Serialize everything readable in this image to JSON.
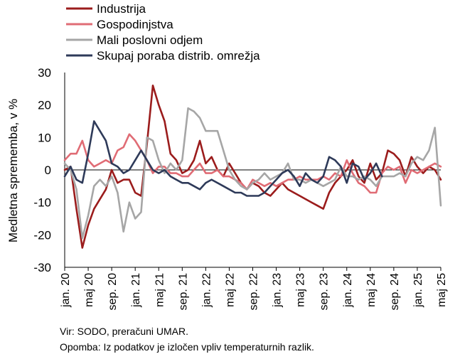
{
  "chart_data": {
    "type": "line",
    "ylabel": "Medletna sprememba, v %",
    "xlabel": "",
    "ylim": [
      -30,
      30
    ],
    "yticks": [
      30,
      20,
      10,
      0,
      -10,
      -20,
      -30
    ],
    "xticks": [
      {
        "i": 0,
        "label": "jan. 20"
      },
      {
        "i": 4,
        "label": "maj 20"
      },
      {
        "i": 8,
        "label": "sep. 20"
      },
      {
        "i": 12,
        "label": "jan. 21"
      },
      {
        "i": 16,
        "label": "maj 21"
      },
      {
        "i": 20,
        "label": "sep. 21"
      },
      {
        "i": 24,
        "label": "jan. 22"
      },
      {
        "i": 28,
        "label": "maj 22"
      },
      {
        "i": 32,
        "label": "sep. 22"
      },
      {
        "i": 36,
        "label": "jan. 23"
      },
      {
        "i": 40,
        "label": "maj 23"
      },
      {
        "i": 44,
        "label": "sep. 23"
      },
      {
        "i": 48,
        "label": "jan. 24"
      },
      {
        "i": 52,
        "label": "maj 24"
      },
      {
        "i": 56,
        "label": "sep. 24"
      },
      {
        "i": 60,
        "label": "jan. 25"
      },
      {
        "i": 64,
        "label": "maj 25"
      }
    ],
    "x": [
      "2020-01",
      "2020-02",
      "2020-03",
      "2020-04",
      "2020-05",
      "2020-06",
      "2020-07",
      "2020-08",
      "2020-09",
      "2020-10",
      "2020-11",
      "2020-12",
      "2021-01",
      "2021-02",
      "2021-03",
      "2021-04",
      "2021-05",
      "2021-06",
      "2021-07",
      "2021-08",
      "2021-09",
      "2021-10",
      "2021-11",
      "2021-12",
      "2022-01",
      "2022-02",
      "2022-03",
      "2022-04",
      "2022-05",
      "2022-06",
      "2022-07",
      "2022-08",
      "2022-09",
      "2022-10",
      "2022-11",
      "2022-12",
      "2023-01",
      "2023-02",
      "2023-03",
      "2023-04",
      "2023-05",
      "2023-06",
      "2023-07",
      "2023-08",
      "2023-09",
      "2023-10",
      "2023-11",
      "2023-12",
      "2024-01",
      "2024-02",
      "2024-03",
      "2024-04",
      "2024-05",
      "2024-06",
      "2024-07",
      "2024-08",
      "2024-09",
      "2024-10",
      "2024-11",
      "2024-12",
      "2025-01",
      "2025-02",
      "2025-03",
      "2025-04",
      "2025-05"
    ],
    "grid": false,
    "legend_position": "top-left",
    "series": [
      {
        "name": "Industrija",
        "color": "#9b1c1c",
        "values": [
          0,
          1,
          -12,
          -24,
          -17,
          -12,
          -9,
          -6,
          0,
          -4,
          -3,
          -3,
          -7,
          -8,
          8,
          26,
          20,
          15,
          5,
          3,
          -1,
          0,
          3,
          9,
          2,
          4,
          0,
          -2,
          2,
          -1,
          -4,
          -6,
          -4,
          -5,
          -7,
          -8,
          -6,
          -4,
          -6,
          -7,
          -8,
          -9,
          -10,
          -11,
          -12,
          -7,
          -4,
          -2,
          0,
          3,
          -2,
          -4,
          2,
          -3,
          -1,
          6,
          5,
          3,
          -2,
          4,
          1,
          -1,
          1,
          0,
          -3
        ]
      },
      {
        "name": "Gospodinjstva",
        "color": "#e06c75",
        "values": [
          3,
          5,
          5,
          9,
          3,
          1,
          2,
          3,
          2,
          6,
          7,
          11,
          9,
          6,
          3,
          -1,
          1,
          1,
          -1,
          -1,
          -2,
          -2,
          0,
          2,
          -1,
          -1,
          0,
          -2,
          -2,
          -3,
          -4,
          -6,
          -3,
          -4,
          -5,
          -4,
          -5,
          -4,
          -3,
          -3,
          -2,
          -3,
          -3,
          -3,
          -2,
          -3,
          -1,
          -2,
          3,
          -1,
          -4,
          -5,
          -7,
          -7,
          -1,
          1,
          0,
          1,
          -4,
          0,
          -1,
          0,
          1,
          2,
          1
        ]
      },
      {
        "name": "Mali poslovni odjem",
        "color": "#a6a6a6",
        "values": [
          2,
          0,
          -6,
          -21,
          -14,
          -5,
          -3,
          -5,
          -2,
          -7,
          -19,
          -10,
          -15,
          -13,
          10,
          9,
          3,
          -1,
          2,
          0,
          3,
          19,
          18,
          16,
          12,
          12,
          12,
          6,
          0,
          -3,
          -5,
          -6,
          -4,
          -3,
          -1,
          -3,
          -2,
          -1,
          2,
          -3,
          -3,
          -4,
          -3,
          -4,
          -5,
          -4,
          -3,
          1,
          -2,
          -2,
          -3,
          -2,
          -3,
          -5,
          -2,
          -2,
          -2,
          -1,
          -2,
          2,
          4,
          3,
          6,
          13,
          -11
        ]
      },
      {
        "name": "Skupaj poraba distrib. omrežja",
        "color": "#2e3a59",
        "values": [
          -2,
          1,
          -3,
          -4,
          5,
          15,
          12,
          9,
          2,
          1,
          -1,
          0,
          3,
          6,
          3,
          0,
          -1,
          0,
          -2,
          -3,
          -4,
          -4,
          -5,
          -6,
          -4,
          -3,
          -4,
          -5,
          -6,
          -7,
          -7,
          -8,
          -8,
          -8,
          -7,
          -5,
          -3,
          -1,
          0,
          -2,
          -5,
          -1,
          -3,
          -4,
          -2,
          4,
          3,
          1,
          -4,
          2,
          1,
          -3,
          -1,
          2,
          -2,
          null,
          null,
          null,
          null,
          null,
          null,
          null,
          null,
          null,
          null
        ]
      }
    ]
  },
  "notes": {
    "source": "Vir: SODO, preračuni UMAR.",
    "remark": "Opomba: Iz podatkov je izločen vpliv temperaturnih razlik."
  }
}
